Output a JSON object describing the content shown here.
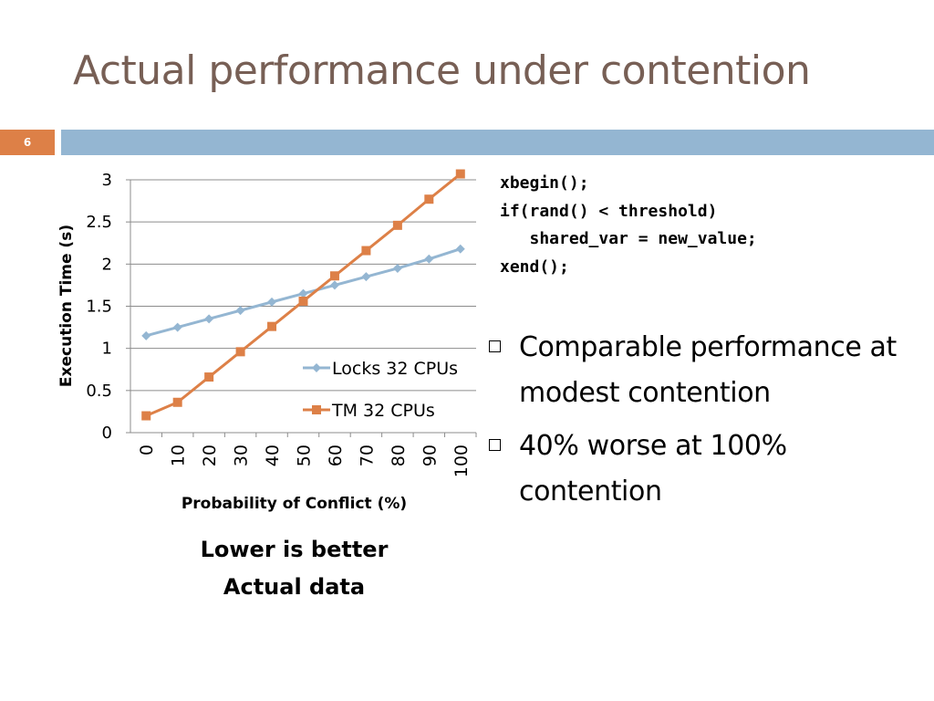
{
  "slide": {
    "title": "Actual performance under contention",
    "slide_number": "6"
  },
  "code": {
    "lines": [
      "xbegin();",
      "if(rand() < threshold)",
      "   shared_var = new_value;",
      "xend();"
    ]
  },
  "bullets": [
    "Comparable performance at modest contention",
    "40% worse at 100% contention"
  ],
  "captions": {
    "line1": "Lower is better",
    "line2": "Actual data"
  },
  "colors": {
    "title": "#775F55",
    "accent_orange": "#DD8047",
    "accent_blue": "#94B6D2",
    "locks_series": "#94B6D2",
    "tm_series": "#DD8047"
  },
  "chart_data": {
    "type": "line",
    "title": "",
    "xlabel": "Probability of Conflict (%)",
    "ylabel": "Execution Time (s)",
    "categories": [
      "0",
      "10",
      "20",
      "30",
      "40",
      "50",
      "60",
      "70",
      "80",
      "90",
      "100"
    ],
    "y_ticks": [
      "0",
      "0.5",
      "1",
      "1.5",
      "2",
      "2.5",
      "3"
    ],
    "ylim": [
      0,
      3
    ],
    "grid": true,
    "legend_position": "right-center-inside",
    "series": [
      {
        "name": "Locks 32 CPUs",
        "marker": "diamond",
        "values": [
          1.15,
          1.25,
          1.35,
          1.45,
          1.55,
          1.65,
          1.75,
          1.85,
          1.95,
          2.06,
          2.18
        ]
      },
      {
        "name": "TM 32 CPUs",
        "marker": "square",
        "values": [
          0.2,
          0.36,
          0.66,
          0.96,
          1.26,
          1.56,
          1.86,
          2.16,
          2.46,
          2.77,
          3.07
        ]
      }
    ]
  }
}
